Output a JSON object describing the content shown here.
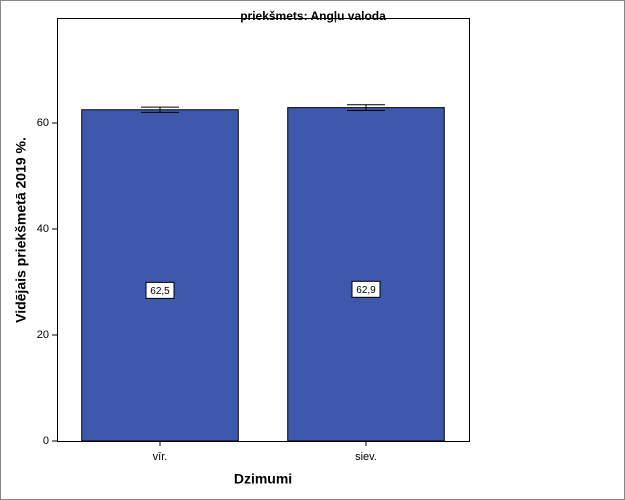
{
  "chart_data": {
    "type": "bar",
    "title": "priekšmets: Angļu valoda",
    "x_label": "Dzimumi",
    "y_label": "Vidējais priekšmetā 2019 %.",
    "categories": [
      "vīr.",
      "siev."
    ],
    "values": [
      62.5,
      62.9
    ],
    "value_labels": [
      "62,5",
      "62,9"
    ],
    "errors": [
      0.5,
      0.55
    ],
    "color": "#3e58ac",
    "ylim": [
      0,
      80
    ],
    "yticks": [
      0,
      20,
      40,
      60
    ],
    "grid": false
  }
}
